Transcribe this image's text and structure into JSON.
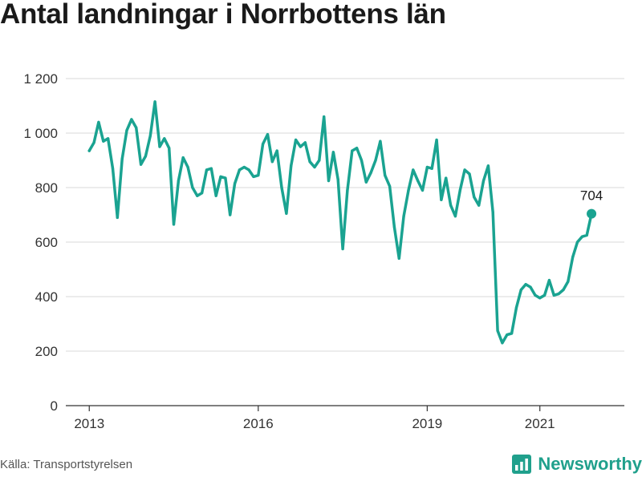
{
  "title": "Antal landningar i Norrbottens län",
  "source": "Källa: Transportstyrelsen",
  "brand": {
    "name": "Newsworthy",
    "icon": "bar-chart-logo-icon",
    "color": "#20a08c"
  },
  "chart_data": {
    "type": "line",
    "title": "Antal landningar i Norrbottens län",
    "xlabel": "",
    "ylabel": "",
    "ylim": [
      0,
      1200
    ],
    "yticks": [
      0,
      200,
      400,
      600,
      800,
      1000,
      1200
    ],
    "ytick_labels": [
      "0",
      "200",
      "400",
      "600",
      "800",
      "1 000",
      "1 200"
    ],
    "xticks": [
      "2013-01",
      "2016-01",
      "2019-01",
      "2021-01"
    ],
    "xtick_labels": [
      "2013",
      "2016",
      "2019",
      "2021"
    ],
    "xlim": [
      "2012-08",
      "2022-07"
    ],
    "grid": true,
    "line_color": "#1aa391",
    "series": [
      {
        "name": "",
        "x": [
          "2013-01",
          "2013-02",
          "2013-03",
          "2013-04",
          "2013-05",
          "2013-06",
          "2013-07",
          "2013-08",
          "2013-09",
          "2013-10",
          "2013-11",
          "2013-12",
          "2014-01",
          "2014-02",
          "2014-03",
          "2014-04",
          "2014-05",
          "2014-06",
          "2014-07",
          "2014-08",
          "2014-09",
          "2014-10",
          "2014-11",
          "2014-12",
          "2015-01",
          "2015-02",
          "2015-03",
          "2015-04",
          "2015-05",
          "2015-06",
          "2015-07",
          "2015-08",
          "2015-09",
          "2015-10",
          "2015-11",
          "2015-12",
          "2016-01",
          "2016-02",
          "2016-03",
          "2016-04",
          "2016-05",
          "2016-06",
          "2016-07",
          "2016-08",
          "2016-09",
          "2016-10",
          "2016-11",
          "2016-12",
          "2017-01",
          "2017-02",
          "2017-03",
          "2017-04",
          "2017-05",
          "2017-06",
          "2017-07",
          "2017-08",
          "2017-09",
          "2017-10",
          "2017-11",
          "2017-12",
          "2018-01",
          "2018-02",
          "2018-03",
          "2018-04",
          "2018-05",
          "2018-06",
          "2018-07",
          "2018-08",
          "2018-09",
          "2018-10",
          "2018-11",
          "2018-12",
          "2019-01",
          "2019-02",
          "2019-03",
          "2019-04",
          "2019-05",
          "2019-06",
          "2019-07",
          "2019-08",
          "2019-09",
          "2019-10",
          "2019-11",
          "2019-12",
          "2020-01",
          "2020-02",
          "2020-03",
          "2020-04",
          "2020-05",
          "2020-06",
          "2020-07",
          "2020-08",
          "2020-09",
          "2020-10",
          "2020-11",
          "2020-12",
          "2021-01",
          "2021-02",
          "2021-03",
          "2021-04",
          "2021-05",
          "2021-06",
          "2021-07",
          "2021-08",
          "2021-09",
          "2021-10",
          "2021-11",
          "2021-12"
        ],
        "values": [
          935,
          965,
          1040,
          970,
          980,
          870,
          690,
          905,
          1010,
          1050,
          1020,
          885,
          915,
          990,
          1115,
          950,
          980,
          945,
          665,
          825,
          910,
          875,
          800,
          770,
          780,
          865,
          870,
          770,
          840,
          835,
          700,
          815,
          865,
          875,
          865,
          840,
          845,
          960,
          995,
          895,
          935,
          800,
          705,
          880,
          975,
          950,
          965,
          895,
          875,
          900,
          1060,
          825,
          930,
          830,
          575,
          790,
          935,
          945,
          900,
          820,
          855,
          900,
          970,
          845,
          805,
          655,
          540,
          695,
          790,
          865,
          825,
          790,
          875,
          870,
          975,
          755,
          835,
          735,
          695,
          790,
          865,
          850,
          765,
          735,
          825,
          880,
          710,
          275,
          230,
          260,
          265,
          360,
          425,
          445,
          435,
          405,
          395,
          405,
          460,
          405,
          410,
          425,
          455,
          545,
          600,
          620,
          625,
          704
        ]
      }
    ],
    "annotations": [
      {
        "x": "2021-12",
        "y": 704,
        "text": "704"
      }
    ]
  }
}
